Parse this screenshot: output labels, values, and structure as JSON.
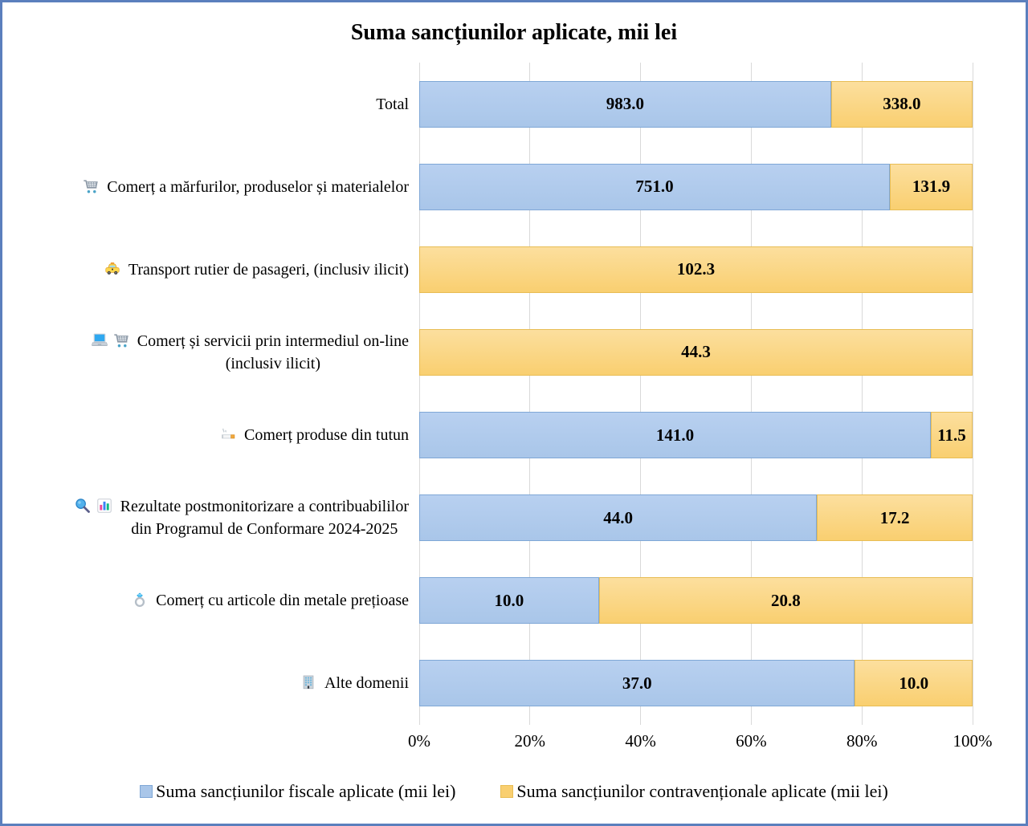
{
  "title": "Suma sancțiunilor aplicate, mii lei",
  "chart_data": {
    "type": "bar",
    "variant": "horizontal-stacked-100percent",
    "categories": [
      {
        "lines": [
          "Total"
        ],
        "icons": []
      },
      {
        "lines": [
          "Comerț a mărfurilor, produselor și materialelor"
        ],
        "icons": [
          "cart"
        ]
      },
      {
        "lines": [
          "Transport rutier de pasageri, (inclusiv ilicit)"
        ],
        "icons": [
          "taxi"
        ]
      },
      {
        "lines": [
          "Comerț și servicii prin intermediul on-line",
          "(inclusiv ilicit)"
        ],
        "icons": [
          "laptop",
          "cart"
        ]
      },
      {
        "lines": [
          "Comerț produse din tutun"
        ],
        "icons": [
          "cigarette"
        ]
      },
      {
        "lines": [
          "Rezultate postmonitorizare a contribuabililor",
          "din Programul de Conformare 2024-2025"
        ],
        "icons": [
          "magnifier",
          "chart"
        ]
      },
      {
        "lines": [
          "Comerț cu articole din metale prețioase"
        ],
        "icons": [
          "ring"
        ]
      },
      {
        "lines": [
          "Alte domenii"
        ],
        "icons": [
          "building"
        ]
      }
    ],
    "series": [
      {
        "name": "Suma sancțiunilor fiscale aplicate (mii lei)",
        "values": [
          983.0,
          751.0,
          0,
          0,
          141.0,
          44.0,
          10.0,
          37.0
        ],
        "labels": [
          "983.0",
          "751.0",
          "",
          "",
          "141.0",
          "44.0",
          "10.0",
          "37.0"
        ]
      },
      {
        "name": "Suma sancțiunilor contravenționale aplicate (mii lei)",
        "values": [
          338.0,
          131.9,
          102.3,
          44.3,
          11.5,
          17.2,
          20.8,
          10.0
        ],
        "labels": [
          "338.0",
          "131.9",
          "102.3",
          "44.3",
          "11.5",
          "17.2",
          "20.8",
          "10.0"
        ]
      }
    ],
    "x_axis": {
      "ticks": [
        "0%",
        "20%",
        "40%",
        "60%",
        "80%",
        "100%"
      ],
      "range": [
        0,
        100
      ],
      "grid": true
    },
    "legend_position": "bottom"
  },
  "colors": {
    "fiscal_fill": "#A9C6E9",
    "fiscal_fill_light": "#B8D0F0",
    "fiscal_border": "#7FA7D6",
    "contra_fill": "#F9CF70",
    "contra_fill_light": "#FCDF9E",
    "contra_border": "#E8BD55",
    "frame_border": "#5B7FBD",
    "gridline": "#D9D9D9",
    "text": "#000000"
  }
}
